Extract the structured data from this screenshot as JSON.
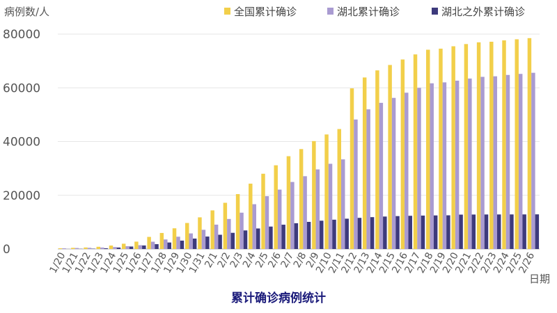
{
  "chart_data": {
    "type": "bar",
    "title": "累计确诊病例统计",
    "xlabel": "日期",
    "ylabel": "病例数/人",
    "ylim": [
      0,
      80000
    ],
    "yticks": [
      0,
      20000,
      40000,
      60000,
      80000
    ],
    "grid": true,
    "legend_position": "top-right",
    "categories": [
      "1/20",
      "1/21",
      "1/22",
      "1/23",
      "1/24",
      "1/25",
      "1/26",
      "1/27",
      "1/28",
      "1/29",
      "1/30",
      "1/31",
      "2/1",
      "2/2",
      "2/3",
      "2/4",
      "2/5",
      "2/6",
      "2/7",
      "2/8",
      "2/9",
      "2/10",
      "2/11",
      "2/12",
      "2/13",
      "2/14",
      "2/15",
      "2/16",
      "2/17",
      "2/18",
      "2/19",
      "2/20",
      "2/21",
      "2/22",
      "2/23",
      "2/24",
      "2/25",
      "2/26"
    ],
    "series": [
      {
        "name": "全国累计确诊",
        "color": "#f2cf4a",
        "values": [
          291,
          440,
          571,
          830,
          1287,
          1975,
          2744,
          4515,
          5974,
          7711,
          9692,
          11791,
          14380,
          17205,
          20438,
          24324,
          28018,
          31161,
          34546,
          37198,
          40171,
          42638,
          44653,
          59804,
          63851,
          66492,
          68500,
          70548,
          72436,
          74185,
          74576,
          75465,
          76288,
          76936,
          77150,
          77658,
          78064,
          78497
        ]
      },
      {
        "name": "湖北累计确诊",
        "color": "#a99bd1",
        "values": [
          270,
          375,
          444,
          549,
          729,
          1052,
          1423,
          2714,
          3554,
          4586,
          5806,
          7153,
          9074,
          11177,
          13522,
          16678,
          19665,
          22112,
          24953,
          27100,
          29631,
          31728,
          33366,
          48206,
          51986,
          54406,
          56249,
          58182,
          59989,
          61682,
          62031,
          62662,
          63454,
          64084,
          64287,
          64786,
          65187,
          65596
        ]
      },
      {
        "name": "湖北之外累计确诊",
        "color": "#3d3a7c",
        "values": [
          21,
          65,
          127,
          281,
          558,
          923,
          1321,
          1801,
          2420,
          3125,
          3886,
          4638,
          5306,
          6028,
          6916,
          7646,
          8353,
          9049,
          9593,
          10098,
          10540,
          10910,
          11287,
          11598,
          11865,
          12086,
          12251,
          12366,
          12447,
          12503,
          12545,
          12803,
          12834,
          12852,
          12863,
          12872,
          12877,
          12901
        ]
      }
    ]
  }
}
